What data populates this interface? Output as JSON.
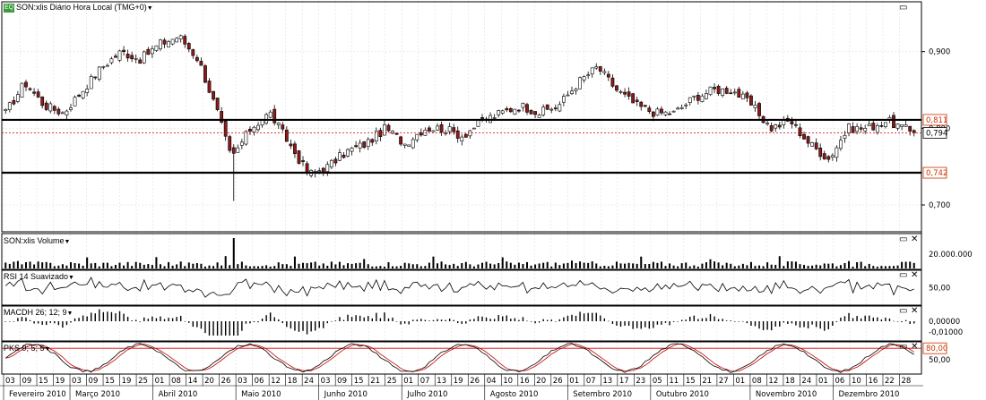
{
  "header": {
    "logo_text": "EQ",
    "main_title": "SON:xlis Diário Hora Local (TMG+0)",
    "volume_title": "SON:xlis Volume",
    "rsi_title": "RSI 14 Suavizado",
    "macd_title": "MACDH 26; 12; 9",
    "pks_title": "PKS 9; 5; 5"
  },
  "price_axis": {
    "ticks": [
      "0,900",
      "0,800",
      "0,700"
    ],
    "labels": {
      "high_line": "0,811",
      "last": "0,794",
      "low_line": "0,742"
    }
  },
  "volume_axis": {
    "ticks": [
      "20.000.000"
    ]
  },
  "rsi_axis": {
    "ticks": [
      "50,00"
    ]
  },
  "macd_axis": {
    "ticks": [
      "0,00000",
      "-0,01000"
    ]
  },
  "pks_axis": {
    "ticks": [
      "80,00",
      "50,00"
    ]
  },
  "date_axis": {
    "days": [
      "03",
      "09",
      "15",
      "19",
      "03",
      "09",
      "15",
      "19",
      "25",
      "01",
      "08",
      "14",
      "20",
      "26",
      "03",
      "06",
      "12",
      "18",
      "24",
      "03",
      "09",
      "15",
      "21",
      "25",
      "01",
      "07",
      "13",
      "19",
      "26",
      "04",
      "10",
      "16",
      "20",
      "26",
      "01",
      "07",
      "13",
      "17",
      "23",
      "05",
      "11",
      "15",
      "21",
      "27",
      "01",
      "08",
      "12",
      "18",
      "24",
      "01",
      "06",
      "10",
      "16",
      "22",
      "28"
    ],
    "months": [
      "Fevereiro 2010",
      "Março 2010",
      "Abril 2010",
      "Maio 2010",
      "Junho 2010",
      "Julho 2010",
      "Agosto 2010",
      "Setembro 2010",
      "Outubro 2010",
      "Novembro 2010",
      "Dezembro 2010"
    ]
  },
  "icons": {
    "maximize": "maximize-icon",
    "close": "close-icon"
  },
  "colors": {
    "up": "#ffffff",
    "down": "#8b1a1a",
    "wick": "#000000",
    "pks_k": "#cc0000",
    "pks_d": "#000000",
    "grid": "#d8d8d8",
    "high_label_border": "#cc3300"
  },
  "chart_data": {
    "type": "candlestick",
    "title": "SON:xlis Diário Hora Local (TMG+0)",
    "ylim": [
      0.665,
      0.965
    ],
    "horizontal_lines": [
      0.811,
      0.742
    ],
    "last_price": 0.794,
    "x_range": [
      "2010-02-03",
      "2010-12-30"
    ],
    "close_path": [
      {
        "date": "2010-02-03",
        "value": 0.82
      },
      {
        "date": "2010-02-10",
        "value": 0.86
      },
      {
        "date": "2010-02-17",
        "value": 0.83
      },
      {
        "date": "2010-02-24",
        "value": 0.82
      },
      {
        "date": "2010-03-03",
        "value": 0.85
      },
      {
        "date": "2010-03-10",
        "value": 0.88
      },
      {
        "date": "2010-03-17",
        "value": 0.9
      },
      {
        "date": "2010-03-24",
        "value": 0.89
      },
      {
        "date": "2010-03-31",
        "value": 0.91
      },
      {
        "date": "2010-04-07",
        "value": 0.92
      },
      {
        "date": "2010-04-14",
        "value": 0.89
      },
      {
        "date": "2010-04-21",
        "value": 0.82
      },
      {
        "date": "2010-04-26",
        "value": 0.76
      },
      {
        "date": "2010-05-03",
        "value": 0.8
      },
      {
        "date": "2010-05-10",
        "value": 0.82
      },
      {
        "date": "2010-05-17",
        "value": 0.78
      },
      {
        "date": "2010-05-24",
        "value": 0.74
      },
      {
        "date": "2010-05-31",
        "value": 0.75
      },
      {
        "date": "2010-06-07",
        "value": 0.77
      },
      {
        "date": "2010-06-14",
        "value": 0.78
      },
      {
        "date": "2010-06-21",
        "value": 0.8
      },
      {
        "date": "2010-06-28",
        "value": 0.78
      },
      {
        "date": "2010-07-05",
        "value": 0.8
      },
      {
        "date": "2010-07-12",
        "value": 0.8
      },
      {
        "date": "2010-07-19",
        "value": 0.79
      },
      {
        "date": "2010-07-26",
        "value": 0.81
      },
      {
        "date": "2010-08-02",
        "value": 0.82
      },
      {
        "date": "2010-08-09",
        "value": 0.83
      },
      {
        "date": "2010-08-16",
        "value": 0.82
      },
      {
        "date": "2010-08-23",
        "value": 0.83
      },
      {
        "date": "2010-08-30",
        "value": 0.86
      },
      {
        "date": "2010-09-06",
        "value": 0.88
      },
      {
        "date": "2010-09-13",
        "value": 0.85
      },
      {
        "date": "2010-09-20",
        "value": 0.83
      },
      {
        "date": "2010-09-27",
        "value": 0.82
      },
      {
        "date": "2010-10-04",
        "value": 0.82
      },
      {
        "date": "2010-10-11",
        "value": 0.84
      },
      {
        "date": "2010-10-18",
        "value": 0.85
      },
      {
        "date": "2010-10-25",
        "value": 0.85
      },
      {
        "date": "2010-11-01",
        "value": 0.83
      },
      {
        "date": "2010-11-08",
        "value": 0.8
      },
      {
        "date": "2010-11-15",
        "value": 0.81
      },
      {
        "date": "2010-11-22",
        "value": 0.78
      },
      {
        "date": "2010-11-29",
        "value": 0.76
      },
      {
        "date": "2010-12-06",
        "value": 0.8
      },
      {
        "date": "2010-12-13",
        "value": 0.8
      },
      {
        "date": "2010-12-20",
        "value": 0.81
      },
      {
        "date": "2010-12-30",
        "value": 0.794
      }
    ],
    "indicators": {
      "volume_axis_tick": 20000000,
      "rsi_reference": 50,
      "macd_reference": 0,
      "pks_levels": [
        80,
        50
      ]
    }
  }
}
